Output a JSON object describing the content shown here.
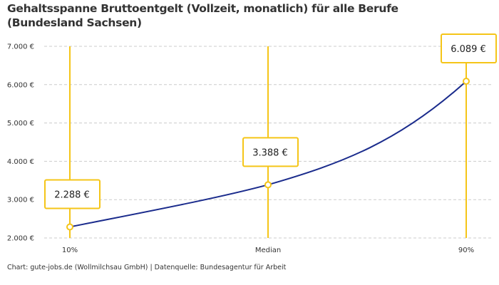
{
  "chart_data": {
    "type": "line",
    "title": "Gehaltsspanne Bruttoentgelt (Vollzeit, monatlich) für alle Berufe (Bundesland Sachsen)",
    "categories": [
      "10%",
      "Median",
      "90%"
    ],
    "values": [
      2288,
      3388,
      6089
    ],
    "data_labels": [
      "2.288 €",
      "3.388 €",
      "6.089 €"
    ],
    "ylim": [
      2000,
      7000
    ],
    "y_ticks": [
      2000,
      3000,
      4000,
      5000,
      6000,
      7000
    ],
    "y_tick_labels": [
      "2.000 €",
      "3.000 €",
      "4.000 €",
      "5.000 €",
      "6.000 €",
      "7.000 €"
    ],
    "grid": true,
    "colors": {
      "line": "#1a2b8c",
      "marker": "#f5c518",
      "grid": "#cccccc"
    }
  },
  "footer": "Chart: gute-jobs.de (Wollmilchsau GmbH) | Datenquelle: Bundesagentur für Arbeit"
}
